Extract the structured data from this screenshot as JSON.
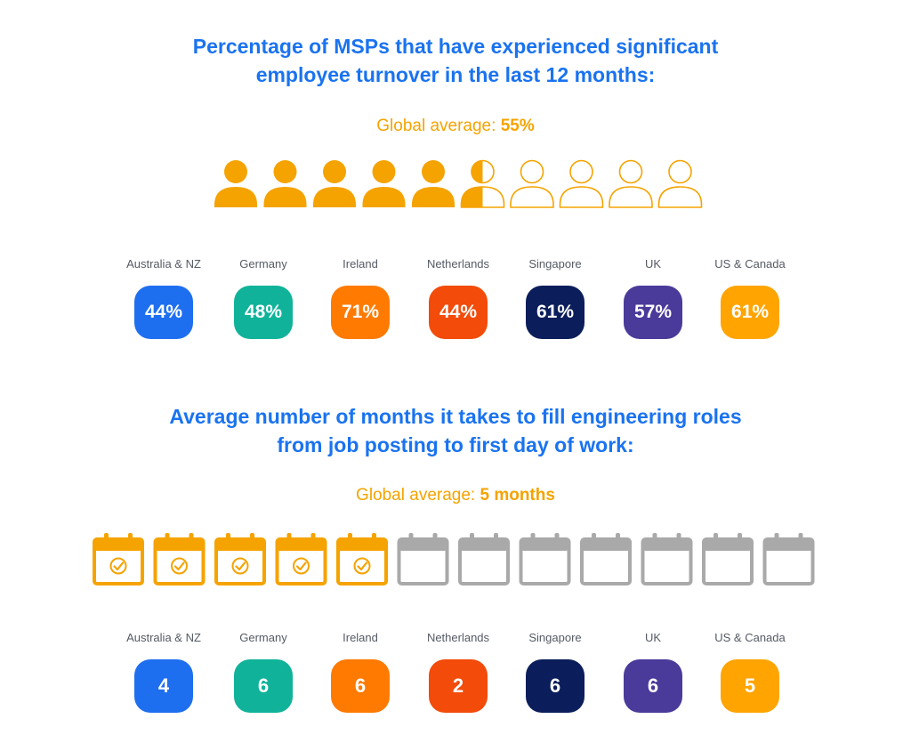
{
  "section1": {
    "title_line1": "Percentage of MSPs that have experienced significant",
    "title_line2": "employee turnover in the last 12 months:",
    "avg_label": "Global average:",
    "avg_value": "55%",
    "people_icons": {
      "total": 10,
      "filled": 5.5,
      "icon": "person-icon"
    },
    "regions": [
      {
        "label": "Australia & NZ",
        "value": "44%",
        "color": "#1e6ff0"
      },
      {
        "label": "Germany",
        "value": "48%",
        "color": "#10b39a"
      },
      {
        "label": "Ireland",
        "value": "71%",
        "color": "#ff7a00"
      },
      {
        "label": "Netherlands",
        "value": "44%",
        "color": "#f24b0a"
      },
      {
        "label": "Singapore",
        "value": "61%",
        "color": "#0b1e5b"
      },
      {
        "label": "UK",
        "value": "57%",
        "color": "#4a3a9a"
      },
      {
        "label": "US & Canada",
        "value": "61%",
        "color": "#ffa400"
      }
    ]
  },
  "section2": {
    "title_line1": "Average number of months it takes to fill engineering roles",
    "title_line2": "from job posting to first day of work:",
    "avg_label": "Global average:",
    "avg_value": "5 months",
    "calendar_icons": {
      "total": 12,
      "checked": 5,
      "icon": "calendar-check-icon"
    },
    "regions": [
      {
        "label": "Australia & NZ",
        "value": "4",
        "color": "#1e6ff0"
      },
      {
        "label": "Germany",
        "value": "6",
        "color": "#10b39a"
      },
      {
        "label": "Ireland",
        "value": "6",
        "color": "#ff7a00"
      },
      {
        "label": "Netherlands",
        "value": "2",
        "color": "#f24b0a"
      },
      {
        "label": "Singapore",
        "value": "6",
        "color": "#0b1e5b"
      },
      {
        "label": "UK",
        "value": "6",
        "color": "#4a3a9a"
      },
      {
        "label": "US & Canada",
        "value": "5",
        "color": "#ffa400"
      }
    ]
  },
  "colors": {
    "title": "#1a73f0",
    "accent": "#f5a300",
    "inactive": "#a9a9a9"
  }
}
